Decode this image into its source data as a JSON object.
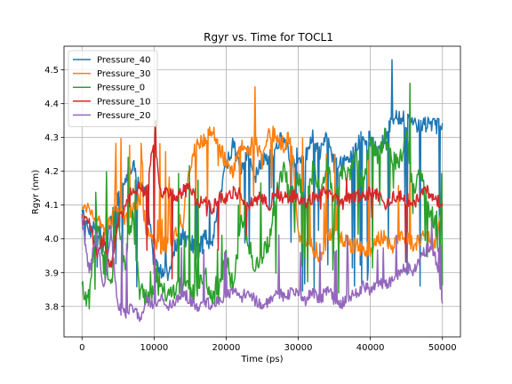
{
  "chart_data": {
    "type": "line",
    "title": "Rgyr vs. Time for TOCL1",
    "xlabel": "Time (ps)",
    "ylabel": "Rgyr (nm)",
    "xlim": [
      -2500,
      52500
    ],
    "ylim": [
      3.71,
      4.57
    ],
    "xticks": [
      0,
      10000,
      20000,
      30000,
      40000,
      50000
    ],
    "xtick_labels": [
      "0",
      "10000",
      "20000",
      "30000",
      "40000",
      "50000"
    ],
    "yticks": [
      3.8,
      3.9,
      4.0,
      4.1,
      4.2,
      4.3,
      4.4,
      4.5
    ],
    "ytick_labels": [
      "3.8",
      "3.9",
      "4.0",
      "4.1",
      "4.2",
      "4.3",
      "4.4",
      "4.5"
    ],
    "grid": true,
    "legend_position": "top-left",
    "series": [
      {
        "name": "Pressure_40",
        "color": "#1f77b4",
        "anchors": [
          [
            0,
            4.08
          ],
          [
            1000,
            4.02
          ],
          [
            2000,
            4.05
          ],
          [
            3000,
            3.95
          ],
          [
            4000,
            4.05
          ],
          [
            5000,
            4.12
          ],
          [
            6000,
            4.18
          ],
          [
            7000,
            4.22
          ],
          [
            8000,
            4.16
          ],
          [
            9000,
            4.12
          ],
          [
            10000,
            3.93
          ],
          [
            11000,
            3.9
          ],
          [
            12000,
            3.9
          ],
          [
            13000,
            3.98
          ],
          [
            14000,
            4.0
          ],
          [
            15000,
            4.0
          ],
          [
            16000,
            3.95
          ],
          [
            17000,
            4.02
          ],
          [
            18000,
            3.98
          ],
          [
            19000,
            4.12
          ],
          [
            20000,
            4.22
          ],
          [
            21000,
            4.28
          ],
          [
            22000,
            4.2
          ],
          [
            23000,
            4.25
          ],
          [
            24000,
            4.18
          ],
          [
            25000,
            4.24
          ],
          [
            26000,
            4.24
          ],
          [
            27000,
            4.28
          ],
          [
            28000,
            4.3
          ],
          [
            29000,
            4.22
          ],
          [
            30000,
            4.25
          ],
          [
            31000,
            4.24
          ],
          [
            32000,
            4.3
          ],
          [
            33000,
            4.25
          ],
          [
            34000,
            4.3
          ],
          [
            35000,
            4.22
          ],
          [
            36000,
            4.22
          ],
          [
            37000,
            4.23
          ],
          [
            38000,
            4.28
          ],
          [
            39000,
            4.3
          ],
          [
            40000,
            4.3
          ],
          [
            41000,
            4.26
          ],
          [
            42000,
            4.3
          ],
          [
            43000,
            4.35
          ],
          [
            44000,
            4.36
          ],
          [
            45000,
            4.35
          ],
          [
            46000,
            4.34
          ],
          [
            47000,
            4.33
          ],
          [
            48000,
            4.34
          ],
          [
            49000,
            4.33
          ],
          [
            50000,
            4.34
          ]
        ],
        "noise": 0.025,
        "spike_to": [
          3.84,
          4.12
        ],
        "spike_prob": 0.09,
        "peak": [
          43000,
          4.53
        ]
      },
      {
        "name": "Pressure_30",
        "color": "#ff7f0e",
        "anchors": [
          [
            0,
            4.08
          ],
          [
            1000,
            4.1
          ],
          [
            2000,
            4.06
          ],
          [
            3000,
            4.02
          ],
          [
            4000,
            4.05
          ],
          [
            5000,
            4.1
          ],
          [
            6000,
            4.05
          ],
          [
            7000,
            4.08
          ],
          [
            8000,
            4.12
          ],
          [
            9000,
            4.02
          ],
          [
            10000,
            4.0
          ],
          [
            11000,
            3.98
          ],
          [
            12000,
            3.98
          ],
          [
            13000,
            4.02
          ],
          [
            14000,
            4.05
          ],
          [
            15000,
            4.22
          ],
          [
            16000,
            4.28
          ],
          [
            17000,
            4.3
          ],
          [
            18000,
            4.32
          ],
          [
            19000,
            4.28
          ],
          [
            20000,
            4.22
          ],
          [
            21000,
            4.2
          ],
          [
            22000,
            4.28
          ],
          [
            23000,
            4.25
          ],
          [
            24000,
            4.3
          ],
          [
            25000,
            4.22
          ],
          [
            26000,
            4.32
          ],
          [
            27000,
            4.3
          ],
          [
            28000,
            4.28
          ],
          [
            29000,
            4.3
          ],
          [
            30000,
            4.02
          ],
          [
            31000,
            4.0
          ],
          [
            32000,
            3.98
          ],
          [
            33000,
            3.95
          ],
          [
            34000,
            4.0
          ],
          [
            35000,
            4.02
          ],
          [
            36000,
            4.0
          ],
          [
            37000,
            3.98
          ],
          [
            38000,
            3.98
          ],
          [
            39000,
            3.97
          ],
          [
            40000,
            3.97
          ],
          [
            41000,
            4.0
          ],
          [
            42000,
            4.0
          ],
          [
            43000,
            3.98
          ],
          [
            44000,
            4.0
          ],
          [
            45000,
            4.0
          ],
          [
            46000,
            3.98
          ],
          [
            47000,
            4.0
          ],
          [
            48000,
            4.0
          ],
          [
            49000,
            3.98
          ],
          [
            50000,
            4.08
          ]
        ],
        "noise": 0.025,
        "spike_to": [
          4.05,
          4.3
        ],
        "spike_prob": 0.08,
        "peak": [
          24000,
          4.45
        ]
      },
      {
        "name": "Pressure_0",
        "color": "#2ca02c",
        "anchors": [
          [
            0,
            3.85
          ],
          [
            1000,
            3.82
          ],
          [
            2000,
            4.05
          ],
          [
            3000,
            3.95
          ],
          [
            4000,
            3.85
          ],
          [
            5000,
            4.08
          ],
          [
            6000,
            3.9
          ],
          [
            7000,
            4.08
          ],
          [
            8000,
            3.85
          ],
          [
            9000,
            3.82
          ],
          [
            10000,
            3.85
          ],
          [
            11000,
            3.86
          ],
          [
            12000,
            3.83
          ],
          [
            13000,
            3.85
          ],
          [
            14000,
            3.86
          ],
          [
            15000,
            3.84
          ],
          [
            16000,
            3.84
          ],
          [
            17000,
            3.9
          ],
          [
            18000,
            3.82
          ],
          [
            19000,
            3.85
          ],
          [
            20000,
            3.95
          ],
          [
            21000,
            3.85
          ],
          [
            22000,
            4.05
          ],
          [
            23000,
            4.0
          ],
          [
            24000,
            3.92
          ],
          [
            25000,
            3.95
          ],
          [
            26000,
            4.0
          ],
          [
            27000,
            4.15
          ],
          [
            28000,
            4.2
          ],
          [
            29000,
            4.12
          ],
          [
            30000,
            4.18
          ],
          [
            31000,
            4.1
          ],
          [
            32000,
            4.2
          ],
          [
            33000,
            4.15
          ],
          [
            34000,
            4.22
          ],
          [
            35000,
            4.1
          ],
          [
            36000,
            4.2
          ],
          [
            37000,
            4.18
          ],
          [
            38000,
            4.25
          ],
          [
            39000,
            4.15
          ],
          [
            40000,
            4.3
          ],
          [
            41000,
            4.25
          ],
          [
            42000,
            4.3
          ],
          [
            43000,
            4.25
          ],
          [
            44000,
            4.22
          ],
          [
            45000,
            4.3
          ],
          [
            46000,
            4.15
          ],
          [
            47000,
            4.2
          ],
          [
            48000,
            4.1
          ],
          [
            49000,
            4.05
          ],
          [
            50000,
            3.84
          ]
        ],
        "noise": 0.03,
        "spike_to": [
          3.84,
          4.3
        ],
        "spike_prob": 0.12,
        "peak": [
          45500,
          4.46
        ]
      },
      {
        "name": "Pressure_10",
        "color": "#d62728",
        "anchors": [
          [
            0,
            4.06
          ],
          [
            1000,
            4.05
          ],
          [
            2000,
            3.95
          ],
          [
            3000,
            4.0
          ],
          [
            4000,
            3.92
          ],
          [
            5000,
            4.05
          ],
          [
            6000,
            4.1
          ],
          [
            7000,
            4.15
          ],
          [
            8000,
            4.15
          ],
          [
            9000,
            4.14
          ],
          [
            10000,
            4.3
          ],
          [
            11000,
            4.13
          ],
          [
            12000,
            4.14
          ],
          [
            13000,
            4.12
          ],
          [
            14000,
            4.14
          ],
          [
            15000,
            4.15
          ],
          [
            16000,
            4.1
          ],
          [
            17000,
            4.12
          ],
          [
            18000,
            4.08
          ],
          [
            19000,
            4.13
          ],
          [
            20000,
            4.12
          ],
          [
            21000,
            4.14
          ],
          [
            22000,
            4.13
          ],
          [
            23000,
            4.1
          ],
          [
            24000,
            4.12
          ],
          [
            25000,
            4.12
          ],
          [
            26000,
            4.1
          ],
          [
            27000,
            4.14
          ],
          [
            28000,
            4.12
          ],
          [
            29000,
            4.13
          ],
          [
            30000,
            4.12
          ],
          [
            31000,
            4.1
          ],
          [
            32000,
            4.12
          ],
          [
            33000,
            4.13
          ],
          [
            34000,
            4.14
          ],
          [
            35000,
            4.12
          ],
          [
            36000,
            4.1
          ],
          [
            37000,
            4.12
          ],
          [
            38000,
            4.13
          ],
          [
            39000,
            4.12
          ],
          [
            40000,
            4.14
          ],
          [
            41000,
            4.13
          ],
          [
            42000,
            4.1
          ],
          [
            43000,
            4.12
          ],
          [
            44000,
            4.13
          ],
          [
            45000,
            4.12
          ],
          [
            46000,
            4.1
          ],
          [
            47000,
            4.13
          ],
          [
            48000,
            4.14
          ],
          [
            49000,
            4.12
          ],
          [
            50000,
            4.1
          ]
        ],
        "noise": 0.02,
        "spike_to": [
          3.78,
          4.2
        ],
        "spike_prob": 0.03,
        "peak": [
          10200,
          4.35
        ]
      },
      {
        "name": "Pressure_20",
        "color": "#9467bd",
        "anchors": [
          [
            0,
            4.05
          ],
          [
            1000,
            3.9
          ],
          [
            2000,
            4.02
          ],
          [
            3000,
            3.85
          ],
          [
            4000,
            4.03
          ],
          [
            5000,
            3.8
          ],
          [
            6000,
            3.78
          ],
          [
            7000,
            3.8
          ],
          [
            8000,
            3.76
          ],
          [
            9000,
            3.82
          ],
          [
            10000,
            3.8
          ],
          [
            11000,
            3.83
          ],
          [
            12000,
            3.8
          ],
          [
            13000,
            3.82
          ],
          [
            14000,
            3.84
          ],
          [
            15000,
            3.82
          ],
          [
            16000,
            3.8
          ],
          [
            17000,
            3.82
          ],
          [
            18000,
            3.8
          ],
          [
            19000,
            3.82
          ],
          [
            20000,
            3.83
          ],
          [
            21000,
            3.85
          ],
          [
            22000,
            3.82
          ],
          [
            23000,
            3.85
          ],
          [
            24000,
            3.82
          ],
          [
            25000,
            3.8
          ],
          [
            26000,
            3.82
          ],
          [
            27000,
            3.84
          ],
          [
            28000,
            3.83
          ],
          [
            29000,
            3.84
          ],
          [
            30000,
            3.85
          ],
          [
            31000,
            3.82
          ],
          [
            32000,
            3.84
          ],
          [
            33000,
            3.82
          ],
          [
            34000,
            3.85
          ],
          [
            35000,
            3.82
          ],
          [
            36000,
            3.81
          ],
          [
            37000,
            3.82
          ],
          [
            38000,
            3.84
          ],
          [
            39000,
            3.86
          ],
          [
            40000,
            3.85
          ],
          [
            41000,
            3.87
          ],
          [
            42000,
            3.86
          ],
          [
            43000,
            3.88
          ],
          [
            44000,
            3.9
          ],
          [
            45000,
            3.92
          ],
          [
            46000,
            3.9
          ],
          [
            47000,
            3.95
          ],
          [
            48000,
            3.97
          ],
          [
            49000,
            3.95
          ],
          [
            50000,
            3.82
          ]
        ],
        "noise": 0.018,
        "spike_to": [
          3.95,
          4.02
        ],
        "spike_prob": 0.05,
        "peak": [
          48500,
          4.05
        ]
      }
    ]
  }
}
